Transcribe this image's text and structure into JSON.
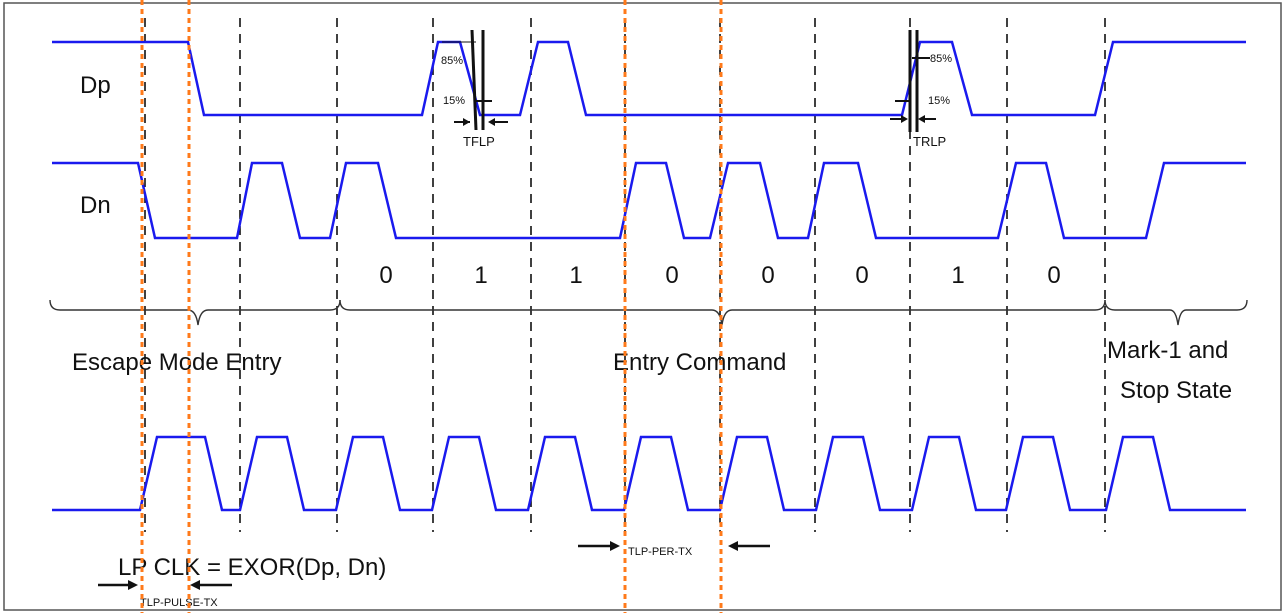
{
  "signals": {
    "dp": "Dp",
    "dn": "Dn",
    "clk": "LP CLK = EXOR(Dp, Dn)"
  },
  "bits": [
    "0",
    "1",
    "1",
    "0",
    "0",
    "0",
    "1",
    "0"
  ],
  "phases": {
    "escape": "Escape Mode Entry",
    "entry": "Entry Command",
    "mark_line1": "Mark-1 and",
    "mark_line2": "Stop State"
  },
  "timing": {
    "tflp": "TFLP",
    "trlp": "TRLP",
    "tlp_per_tx": "TLP-PER-TX",
    "tlp_pulse_tx": "TLP-PULSE-TX",
    "pct_85": "85%",
    "pct_15": "15%"
  },
  "colors": {
    "waveform": "#1a1aee",
    "guide": "#111111",
    "highlight": "#ff7a1a",
    "border": "#555555"
  }
}
